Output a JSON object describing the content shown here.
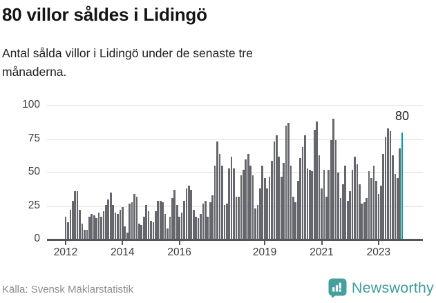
{
  "header": {
    "title": "80 villor såldes i Lidingö",
    "subtitle": "Antal sålda villor i Lidingö under de senaste tre månaderna."
  },
  "chart_data": {
    "type": "bar",
    "title": "80 villor såldes i Lidingö",
    "subtitle": "Antal sålda villor i Lidingö under de senaste tre månaderna.",
    "x_start": "2012-01",
    "x_end": "2023-11",
    "x_unit": "month",
    "values": [
      17,
      13,
      22,
      29,
      36,
      36,
      22,
      12,
      7,
      7,
      17,
      19,
      18,
      16,
      20,
      17,
      21,
      26,
      30,
      35,
      26,
      20,
      19,
      22,
      24,
      10,
      5,
      27,
      28,
      34,
      32,
      12,
      11,
      17,
      26,
      21,
      14,
      13,
      21,
      29,
      29,
      28,
      19,
      8,
      17,
      31,
      37,
      26,
      17,
      20,
      29,
      38,
      40,
      37,
      22,
      17,
      16,
      19,
      27,
      29,
      17,
      28,
      33,
      55,
      73,
      64,
      55,
      26,
      27,
      53,
      62,
      53,
      32,
      32,
      48,
      52,
      60,
      64,
      55,
      48,
      23,
      26,
      38,
      55,
      46,
      38,
      47,
      59,
      73,
      78,
      62,
      47,
      57,
      85,
      87,
      55,
      32,
      28,
      44,
      61,
      69,
      78,
      53,
      52,
      51,
      82,
      88,
      63,
      38,
      52,
      32,
      52,
      74,
      90,
      74,
      50,
      31,
      41,
      55,
      29,
      36,
      52,
      62,
      56,
      41,
      27,
      28,
      31,
      51,
      46,
      55,
      44,
      34,
      40,
      64,
      77,
      83,
      81,
      63,
      49,
      46,
      68,
      80
    ],
    "highlight_index": 142,
    "highlight_value": 80,
    "highlight_value_label": "80",
    "ylim": [
      0,
      100
    ],
    "yticks": [
      0,
      25,
      50,
      75,
      100
    ],
    "xticks": [
      {
        "label": "2012",
        "month_index": 0
      },
      {
        "label": "2014",
        "month_index": 24
      },
      {
        "label": "2016",
        "month_index": 48
      },
      {
        "label": "2019",
        "month_index": 84
      },
      {
        "label": "2021",
        "month_index": 108
      },
      {
        "label": "2023",
        "month_index": 132
      }
    ],
    "grid": true,
    "legend": "none",
    "bar_color": "#65676c",
    "highlight_color": "#00a1a0"
  },
  "footer": {
    "source": "Källa: Svensk Mäklarstatistik",
    "brand": "Newsworthy",
    "brand_color": "#3f9d9b"
  }
}
